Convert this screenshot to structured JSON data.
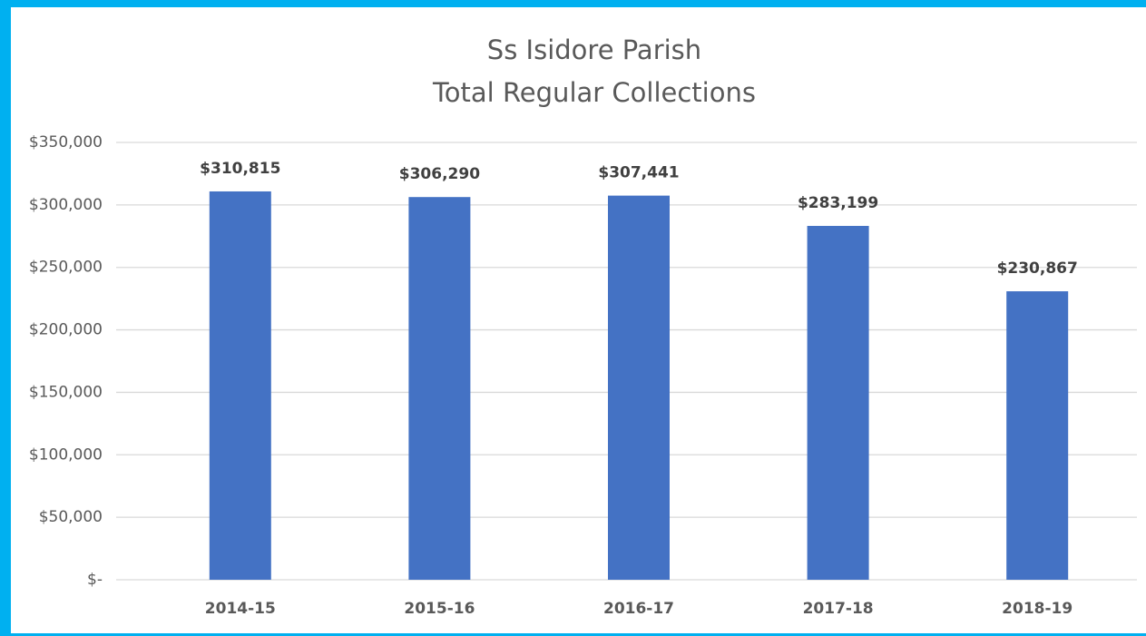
{
  "chart_data": {
    "type": "bar",
    "title": "Ss Isidore Parish",
    "subtitle": "Total Regular Collections",
    "categories": [
      "2014-15",
      "2015-16",
      "2016-17",
      "2017-18",
      "2018-19"
    ],
    "values": [
      310815,
      306290,
      307441,
      283199,
      230867
    ],
    "value_labels": [
      "$310,815",
      "$306,290",
      "$307,441",
      "$283,199",
      "$230,867"
    ],
    "color": "#4472c4",
    "ylim": [
      0,
      350000
    ],
    "yticks": [
      {
        "value": 0,
        "label": "$-"
      },
      {
        "value": 50000,
        "label": "$50,000"
      },
      {
        "value": 100000,
        "label": "$100,000"
      },
      {
        "value": 150000,
        "label": "$150,000"
      },
      {
        "value": 200000,
        "label": "$200,000"
      },
      {
        "value": 250000,
        "label": "$250,000"
      },
      {
        "value": 300000,
        "label": "$300,000"
      },
      {
        "value": 350000,
        "label": "$350,000"
      }
    ],
    "grid": true
  }
}
